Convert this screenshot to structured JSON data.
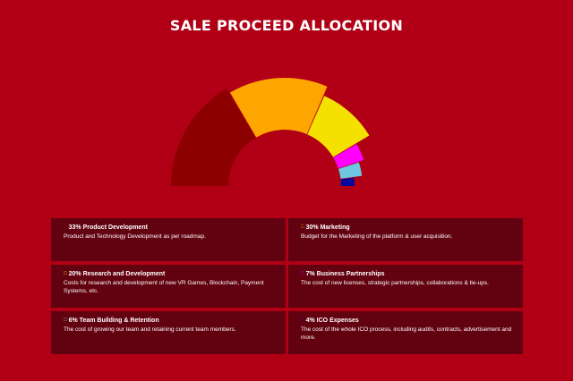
{
  "page": {
    "title": "SALE PROCEED ALLOCATION",
    "background": "#b10016",
    "card_background": "#62010f"
  },
  "chart_data": {
    "type": "pie",
    "variant": "half-donut",
    "title": "SALE PROCEED ALLOCATION",
    "slices": [
      {
        "label": "Product Development",
        "value": 33,
        "color": "#8d0000"
      },
      {
        "label": "Marketing",
        "value": 30,
        "color": "#ffa500"
      },
      {
        "label": "Research and Development",
        "value": 20,
        "color": "#f5e100"
      },
      {
        "label": "Business Partnerships",
        "value": 7,
        "color": "#ff00ff"
      },
      {
        "label": "Team Building & Retention",
        "value": 6,
        "color": "#6ec6e0"
      },
      {
        "label": "ICO Expenses",
        "value": 4,
        "color": "#06089a"
      }
    ]
  },
  "cards": [
    {
      "bullet": "□",
      "title": "33% Product Development",
      "desc": "Product and Technology Development as per roadmap."
    },
    {
      "bullet": "□",
      "title": "30% Marketing",
      "desc": "Budget for the Marketing of the platform & user acquisition."
    },
    {
      "bullet": "□",
      "title": "20% Research and Development",
      "desc": "Costs for research and development of new VR Games, Blockchain, Payment Systems, etc."
    },
    {
      "bullet": "□",
      "title": "7% Business Partnerships",
      "desc": "The cost of new licenses, strategic partnerships, collaborations & tie-ups."
    },
    {
      "bullet": "□",
      "title": "6% Team Building & Retention",
      "desc": "The cost of growing our team and retaining current team members."
    },
    {
      "bullet": "□",
      "title": "4% ICO Expenses",
      "desc": "The cost of the whole ICO process, including audits, contracts, advertisement and more."
    }
  ]
}
